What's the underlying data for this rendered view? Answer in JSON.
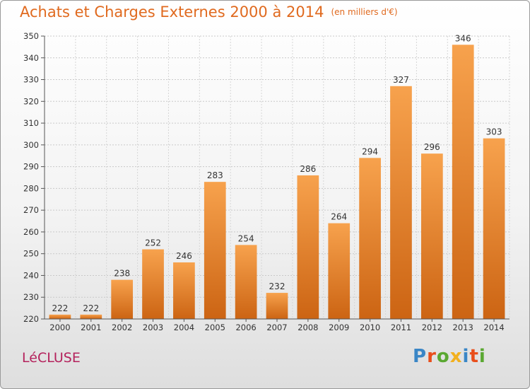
{
  "chart_data": {
    "type": "bar",
    "title": "Achats et Charges Externes 2000 à 2014",
    "subtitle": "(en milliers d'€)",
    "categories": [
      "2000",
      "2001",
      "2002",
      "2003",
      "2004",
      "2005",
      "2006",
      "2007",
      "2008",
      "2009",
      "2010",
      "2011",
      "2012",
      "2013",
      "2014"
    ],
    "values": [
      222,
      222,
      238,
      252,
      246,
      283,
      254,
      232,
      286,
      264,
      294,
      327,
      296,
      346,
      303
    ],
    "ylim": [
      220,
      350
    ],
    "yticks": [
      220,
      230,
      240,
      250,
      260,
      270,
      280,
      290,
      300,
      310,
      320,
      330,
      340,
      350
    ],
    "xlabel": "",
    "ylabel": "",
    "grid": true,
    "colors": {
      "bar_light": "#f7a24d",
      "bar_dark": "#cc6413",
      "title": "#e06a1f"
    }
  },
  "footer": {
    "place": "LéCLUSE",
    "brand": "Proxiti",
    "brand_colors": [
      "#3a86c6",
      "#e94e1b",
      "#5aa832",
      "#f2b01e",
      "#3a86c6",
      "#e94e1b",
      "#5aa832"
    ]
  }
}
